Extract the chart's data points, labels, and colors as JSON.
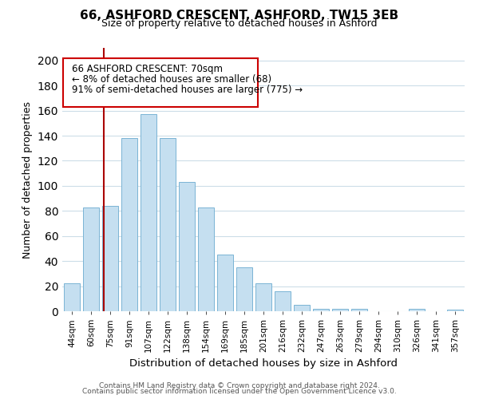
{
  "title": "66, ASHFORD CRESCENT, ASHFORD, TW15 3EB",
  "subtitle": "Size of property relative to detached houses in Ashford",
  "xlabel": "Distribution of detached houses by size in Ashford",
  "ylabel": "Number of detached properties",
  "bar_color": "#c5dff0",
  "bar_edge_color": "#7ab4d4",
  "categories": [
    "44sqm",
    "60sqm",
    "75sqm",
    "91sqm",
    "107sqm",
    "122sqm",
    "138sqm",
    "154sqm",
    "169sqm",
    "185sqm",
    "201sqm",
    "216sqm",
    "232sqm",
    "247sqm",
    "263sqm",
    "279sqm",
    "294sqm",
    "310sqm",
    "326sqm",
    "341sqm",
    "357sqm"
  ],
  "values": [
    22,
    83,
    84,
    138,
    157,
    138,
    103,
    83,
    45,
    35,
    22,
    16,
    5,
    2,
    2,
    2,
    0,
    0,
    2,
    0,
    1
  ],
  "vline_color": "#aa0000",
  "vline_x_index": 2,
  "annotation_line1": "66 ASHFORD CRESCENT: 70sqm",
  "annotation_line2": "← 8% of detached houses are smaller (68)",
  "annotation_line3": "91% of semi-detached houses are larger (775) →",
  "ylim": [
    0,
    210
  ],
  "yticks": [
    0,
    20,
    40,
    60,
    80,
    100,
    120,
    140,
    160,
    180,
    200
  ],
  "footer_line1": "Contains HM Land Registry data © Crown copyright and database right 2024.",
  "footer_line2": "Contains public sector information licensed under the Open Government Licence v3.0.",
  "background_color": "#ffffff",
  "grid_color": "#ccdde8"
}
